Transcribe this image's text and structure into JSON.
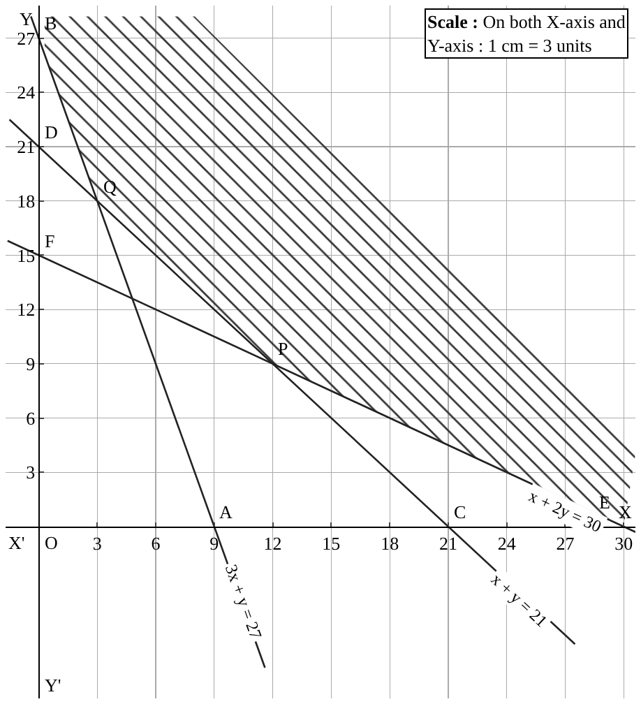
{
  "chart_data": {
    "type": "line",
    "xlim": [
      -1.7,
      30.6
    ],
    "ylim": [
      -9.5,
      28.8
    ],
    "xticks": [
      3,
      6,
      9,
      12,
      15,
      18,
      21,
      24,
      27,
      30
    ],
    "yticks": [
      3,
      6,
      9,
      12,
      15,
      18,
      21,
      24,
      27
    ],
    "grid": true,
    "legend": false,
    "marker": "none",
    "line_style": "solid",
    "series": [
      {
        "type": "area",
        "color": "#333333",
        "x": [
          0.3,
          8,
          30.6,
          30,
          12,
          3,
          0.3
        ],
        "values": [
          28.2,
          28.2,
          4,
          0,
          9,
          18,
          26.1
        ]
      },
      {
        "name": "3x + y = 27",
        "color": "#222222",
        "x": [
          -0.4,
          11.6
        ],
        "values": [
          28.2,
          -7.8
        ]
      },
      {
        "name": "x + y = 21",
        "color": "#222222",
        "x": [
          -1.5,
          27.5
        ],
        "values": [
          22.5,
          -6.5
        ]
      },
      {
        "name": "x + 2y = 30",
        "color": "#222222",
        "x": [
          -1.6,
          30.6
        ],
        "values": [
          15.8,
          -0.3
        ]
      }
    ],
    "annotations": [
      {
        "text": "B",
        "x": 0,
        "y": 27
      },
      {
        "text": "A",
        "x": 9,
        "y": 0
      },
      {
        "text": "D",
        "x": 0,
        "y": 21
      },
      {
        "text": "C",
        "x": 21,
        "y": 0
      },
      {
        "text": "F",
        "x": 0,
        "y": 15
      },
      {
        "text": "E",
        "x": 30,
        "y": 0
      },
      {
        "text": "Q",
        "x": 3,
        "y": 18
      },
      {
        "text": "P",
        "x": 12,
        "y": 9
      },
      "O",
      "X",
      "X'",
      "Y",
      "Y'",
      "Scale : On both X-axis and Y-axis : 1 cm = 3 units"
    ]
  }
}
